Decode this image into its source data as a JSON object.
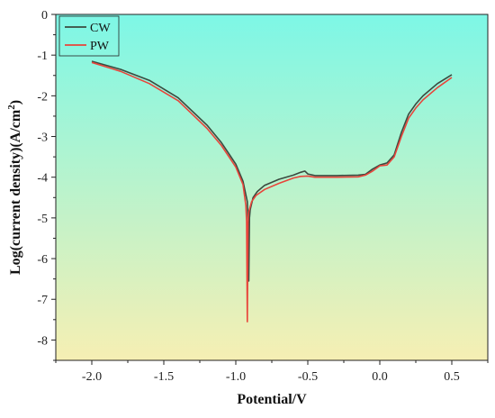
{
  "chart_data": {
    "type": "line",
    "xlabel": "Potential/V",
    "ylabel": "Log(current density)(A/cm",
    "ylabel_superscript": "2",
    "ylabel_suffix": ")",
    "xlim": [
      -2.25,
      0.75
    ],
    "ylim": [
      -8.5,
      0
    ],
    "x_ticks": [
      -2.0,
      -1.5,
      -1.0,
      -0.5,
      0.0,
      0.5
    ],
    "x_tick_labels": [
      "-2.0",
      "-1.5",
      "-1.0",
      "-0.5",
      "0.0",
      "0.5"
    ],
    "y_ticks": [
      0,
      -1,
      -2,
      -3,
      -4,
      -5,
      -6,
      -7,
      -8
    ],
    "y_tick_labels": [
      "0",
      "-1",
      "-2",
      "-3",
      "-4",
      "-5",
      "-6",
      "-7",
      "-8"
    ],
    "grid": false,
    "legend_position": "top-left",
    "background": {
      "top": "#7df7e6",
      "bottom": "#f6efb3"
    },
    "series": [
      {
        "name": "CW",
        "color": "#3a4a3f",
        "x": [
          -2.0,
          -1.8,
          -1.6,
          -1.4,
          -1.2,
          -1.1,
          -1.0,
          -0.95,
          -0.92,
          -0.915,
          -0.91,
          -0.905,
          -0.9,
          -0.88,
          -0.85,
          -0.8,
          -0.7,
          -0.6,
          -0.55,
          -0.52,
          -0.5,
          -0.45,
          -0.3,
          -0.15,
          -0.1,
          -0.05,
          0.0,
          0.05,
          0.1,
          0.15,
          0.2,
          0.25,
          0.3,
          0.4,
          0.5
        ],
        "y": [
          -1.15,
          -1.35,
          -1.62,
          -2.05,
          -2.72,
          -3.15,
          -3.68,
          -4.1,
          -4.6,
          -5.0,
          -6.55,
          -5.0,
          -4.8,
          -4.5,
          -4.35,
          -4.2,
          -4.05,
          -3.95,
          -3.88,
          -3.85,
          -3.92,
          -3.96,
          -3.96,
          -3.95,
          -3.93,
          -3.8,
          -3.7,
          -3.65,
          -3.45,
          -2.9,
          -2.45,
          -2.2,
          -2.0,
          -1.7,
          -1.48
        ]
      },
      {
        "name": "PW",
        "color": "#e8443a",
        "x": [
          -2.0,
          -1.8,
          -1.6,
          -1.4,
          -1.2,
          -1.1,
          -1.0,
          -0.95,
          -0.93,
          -0.925,
          -0.92,
          -0.915,
          -0.91,
          -0.89,
          -0.86,
          -0.8,
          -0.7,
          -0.6,
          -0.55,
          -0.5,
          -0.45,
          -0.3,
          -0.15,
          -0.1,
          -0.05,
          0.0,
          0.05,
          0.1,
          0.15,
          0.2,
          0.25,
          0.3,
          0.4,
          0.5
        ],
        "y": [
          -1.18,
          -1.4,
          -1.7,
          -2.12,
          -2.8,
          -3.22,
          -3.75,
          -4.18,
          -4.7,
          -5.1,
          -7.55,
          -5.1,
          -4.85,
          -4.6,
          -4.45,
          -4.3,
          -4.15,
          -4.02,
          -3.98,
          -3.97,
          -4.0,
          -4.0,
          -3.99,
          -3.95,
          -3.85,
          -3.72,
          -3.7,
          -3.5,
          -3.0,
          -2.55,
          -2.3,
          -2.1,
          -1.8,
          -1.55
        ]
      }
    ]
  }
}
